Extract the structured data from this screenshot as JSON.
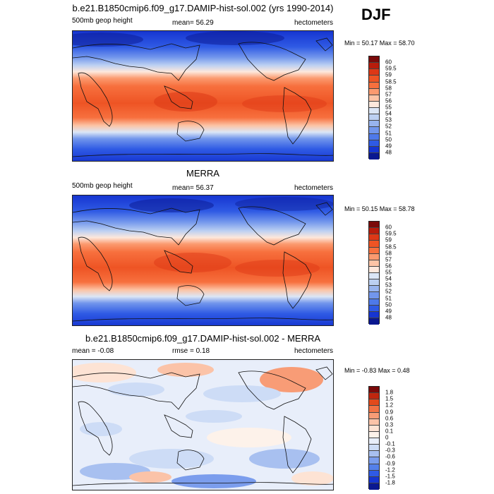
{
  "season": "DJF",
  "panels": [
    {
      "title": "b.e21.B1850cmip6.f09_g17.DAMIP-hist-sol.002 (yrs 1990-2014)",
      "left_label": "500mb geop height",
      "center_label": "mean=  56.29",
      "right_label": "hectometers",
      "minmax": "Min =  50.17 Max =  58.70",
      "levels": [
        "60",
        "59.5",
        "59",
        "58.5",
        "58",
        "57",
        "56",
        "55",
        "54",
        "53",
        "52",
        "51",
        "50",
        "49",
        "48"
      ],
      "colors": [
        "#7a0a0a",
        "#b81c0c",
        "#dd3816",
        "#ee5424",
        "#f7703e",
        "#fb9a6f",
        "#fcc4a6",
        "#fde8dc",
        "#dbe6f6",
        "#bcd0f2",
        "#98b4ee",
        "#7296ec",
        "#4e79e9",
        "#2f5ae4",
        "#1635d1",
        "#0a1890"
      ]
    },
    {
      "title": "MERRA",
      "left_label": "500mb geop height",
      "center_label": "mean=  56.37",
      "right_label": "hectometers",
      "minmax": "Min =  50.15 Max =  58.78",
      "levels": [
        "60",
        "59.5",
        "59",
        "58.5",
        "58",
        "57",
        "56",
        "55",
        "54",
        "53",
        "52",
        "51",
        "50",
        "49",
        "48"
      ],
      "colors": [
        "#7a0a0a",
        "#b81c0c",
        "#dd3816",
        "#ee5424",
        "#f7703e",
        "#fb9a6f",
        "#fcc4a6",
        "#fde8dc",
        "#dbe6f6",
        "#bcd0f2",
        "#98b4ee",
        "#7296ec",
        "#4e79e9",
        "#2f5ae4",
        "#1635d1",
        "#0a1890"
      ]
    },
    {
      "title": "b.e21.B1850cmip6.f09_g17.DAMIP-hist-sol.002 - MERRA",
      "left_label": "mean =  -0.08",
      "center_label": "rmse =   0.18",
      "right_label": "hectometers",
      "minmax": "Min =  -0.83 Max =   0.48",
      "levels": [
        "1.8",
        "1.5",
        "1.2",
        "0.9",
        "0.6",
        "0.3",
        "0.1",
        "0",
        "-0.1",
        "-0.3",
        "-0.6",
        "-0.9",
        "-1.2",
        "-1.5",
        "-1.8"
      ],
      "colors": [
        "#7a0a0a",
        "#c0260e",
        "#e34a1c",
        "#f27244",
        "#f89c76",
        "#fbc3a8",
        "#fde3d4",
        "#fdf2ea",
        "#e8eefa",
        "#cddcf6",
        "#a8c0f0",
        "#7b9ded",
        "#5480ea",
        "#2f5ae4",
        "#1635d1",
        "#0a1890"
      ]
    }
  ]
}
